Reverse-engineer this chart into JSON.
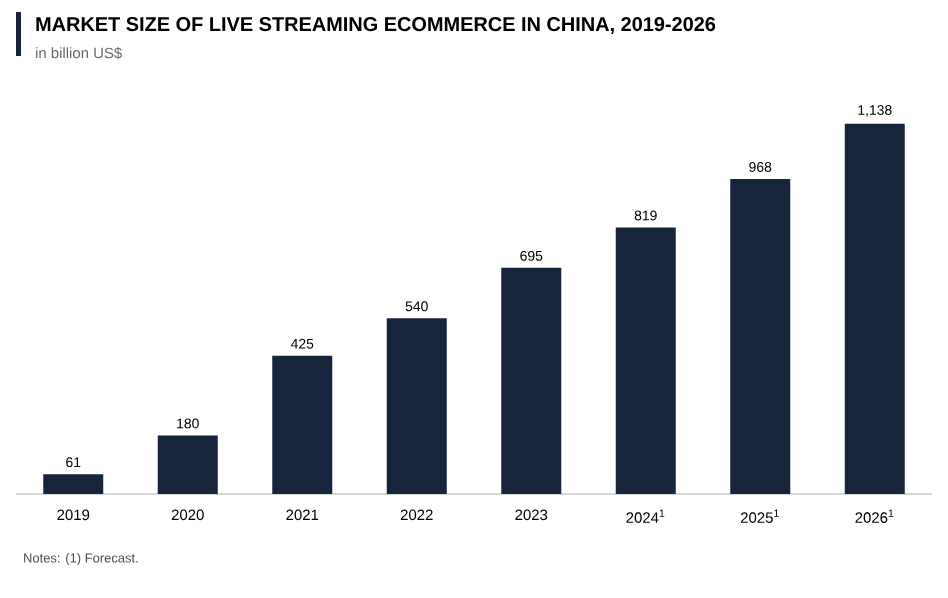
{
  "chart_data": {
    "type": "bar",
    "title": "MARKET SIZE OF LIVE STREAMING ECOMMERCE IN CHINA, 2019-2026",
    "subtitle": "in billion US$",
    "categories": [
      "2019",
      "2020",
      "2021",
      "2022",
      "2023",
      "2024$^{1}$",
      "2025$^{1}$",
      "2026$^{1}$"
    ],
    "values": [
      61,
      180,
      425,
      540,
      695,
      819,
      968,
      1138
    ],
    "color": "#16253b",
    "value_labels": [
      "61",
      "180",
      "425",
      "540",
      "695",
      "819",
      "968",
      "1,138"
    ],
    "annotations": [
      "Notes: (1) Forecast."
    ]
  }
}
